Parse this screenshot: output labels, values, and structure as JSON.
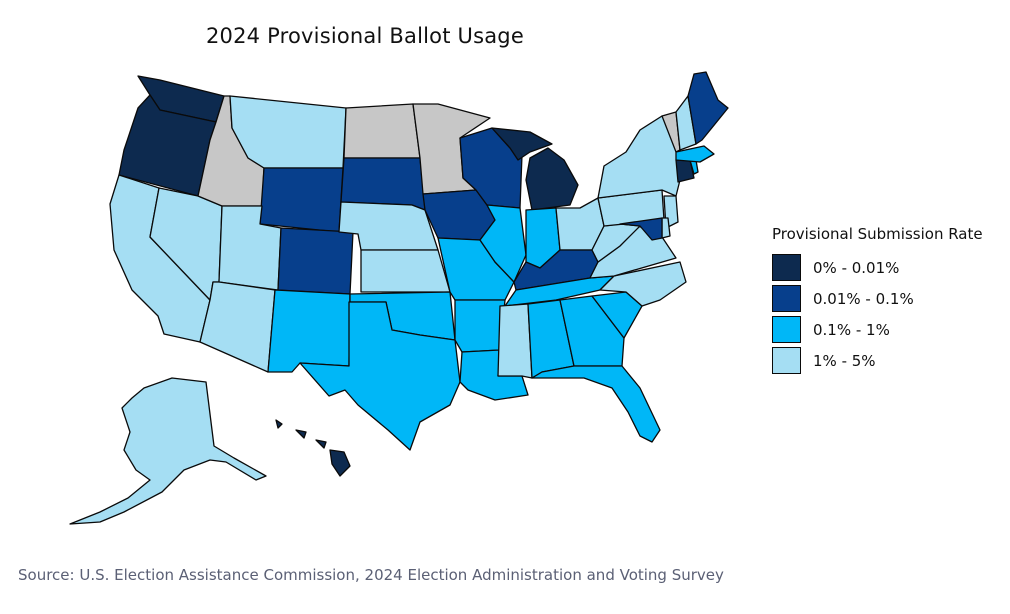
{
  "title": "2024 Provisional Ballot Usage",
  "legend": {
    "title": "Provisional Submission Rate",
    "items": [
      {
        "label": "0% - 0.01%",
        "color": "#0d2a4f"
      },
      {
        "label": "0.01% - 0.1%",
        "color": "#073f8c"
      },
      {
        "label": "0.1% - 1%",
        "color": "#00b7f7"
      },
      {
        "label": "1% - 5%",
        "color": "#a5def3"
      }
    ]
  },
  "no_data_color": "#c7c7c7",
  "states": {
    "WA": "0% - 0.01%",
    "OR": "0% - 0.01%",
    "MI": "0% - 0.01%",
    "HI": "0% - 0.01%",
    "CT": "0% - 0.01%",
    "WY": "0.01% - 0.1%",
    "CO": "0.01% - 0.1%",
    "SD": "0.01% - 0.1%",
    "IA": "0.01% - 0.1%",
    "WI": "0.01% - 0.1%",
    "KY": "0.01% - 0.1%",
    "ME": "0.01% - 0.1%",
    "MD": "0.01% - 0.1%",
    "NM": "0.1% - 1%",
    "TX": "0.1% - 1%",
    "OK": "0.1% - 1%",
    "MO": "0.1% - 1%",
    "AR": "0.1% - 1%",
    "LA": "0.1% - 1%",
    "IL": "0.1% - 1%",
    "IN": "0.1% - 1%",
    "TN": "0.1% - 1%",
    "AL": "0.1% - 1%",
    "GA": "0.1% - 1%",
    "SC": "0.1% - 1%",
    "FL": "0.1% - 1%",
    "MA": "0.1% - 1%",
    "RI": "0.1% - 1%",
    "CA": "1% - 5%",
    "NV": "1% - 5%",
    "UT": "1% - 5%",
    "AZ": "1% - 5%",
    "MT": "1% - 5%",
    "NE": "1% - 5%",
    "KS": "1% - 5%",
    "MS": "1% - 5%",
    "OH": "1% - 5%",
    "WV": "1% - 5%",
    "VA": "1% - 5%",
    "NC": "1% - 5%",
    "PA": "1% - 5%",
    "NY": "1% - 5%",
    "NJ": "1% - 5%",
    "DE": "1% - 5%",
    "NH": "1% - 5%",
    "AK": "1% - 5%",
    "ID": "no data",
    "ND": "no data",
    "MN": "no data",
    "VT": "no data"
  },
  "source": "Source: U.S. Election Assistance Commission, 2024 Election Administration and Voting Survey"
}
